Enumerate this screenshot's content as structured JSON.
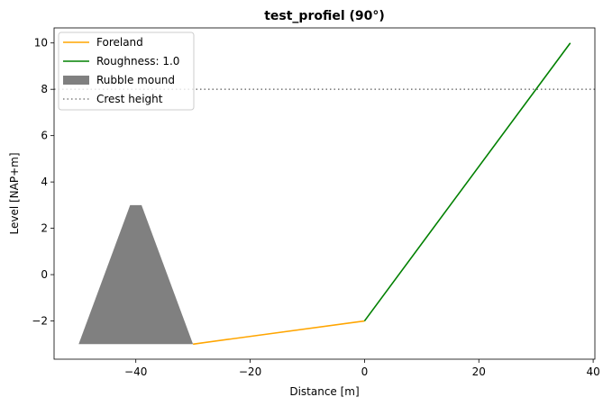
{
  "chart_data": {
    "type": "line",
    "title": "test_profiel (90°)",
    "xlabel": "Distance [m]",
    "ylabel": "Level [NAP+m]",
    "xlim": [
      -54.3,
      40.3
    ],
    "ylim": [
      -3.65,
      10.65
    ],
    "xticks": [
      -40,
      -20,
      0,
      20,
      40
    ],
    "yticks": [
      -2,
      0,
      2,
      4,
      6,
      8,
      10
    ],
    "grid": false,
    "legend_position": "top-left",
    "series": [
      {
        "name": "Foreland",
        "kind": "line",
        "color": "#ffa500",
        "x": [
          -30,
          0
        ],
        "y": [
          -3,
          -2
        ]
      },
      {
        "name": "Roughness: 1.0",
        "kind": "line",
        "color": "#008000",
        "x": [
          0,
          36
        ],
        "y": [
          -2,
          10
        ]
      },
      {
        "name": "Rubble mound",
        "kind": "fill",
        "color": "#808080",
        "x": [
          -50,
          -41,
          -39,
          -30
        ],
        "y": [
          -3,
          3,
          3,
          -3
        ]
      },
      {
        "name": "Crest height",
        "kind": "hline",
        "color": "#808080",
        "linestyle": "dotted",
        "y": 8
      }
    ]
  }
}
